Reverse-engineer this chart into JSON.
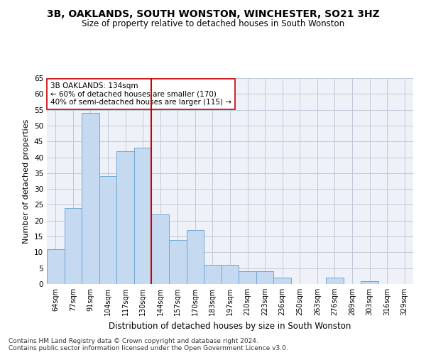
{
  "title": "3B, OAKLANDS, SOUTH WONSTON, WINCHESTER, SO21 3HZ",
  "subtitle": "Size of property relative to detached houses in South Wonston",
  "xlabel": "Distribution of detached houses by size in South Wonston",
  "ylabel": "Number of detached properties",
  "categories": [
    "64sqm",
    "77sqm",
    "91sqm",
    "104sqm",
    "117sqm",
    "130sqm",
    "144sqm",
    "157sqm",
    "170sqm",
    "183sqm",
    "197sqm",
    "210sqm",
    "223sqm",
    "236sqm",
    "250sqm",
    "263sqm",
    "276sqm",
    "289sqm",
    "303sqm",
    "316sqm",
    "329sqm"
  ],
  "values": [
    11,
    24,
    54,
    34,
    42,
    43,
    22,
    14,
    17,
    6,
    6,
    4,
    4,
    2,
    0,
    0,
    2,
    0,
    1,
    0,
    0
  ],
  "bar_color": "#c5d9f0",
  "bar_edge_color": "#6fa8d5",
  "grid_color": "#c0c8d8",
  "bg_color": "#eef2f8",
  "vline_x_index": 5,
  "vline_color": "#cc0000",
  "annotation_text": "3B OAKLANDS: 134sqm\n← 60% of detached houses are smaller (170)\n40% of semi-detached houses are larger (115) →",
  "annotation_box_color": "#ffffff",
  "annotation_box_edge": "#cc0000",
  "annotation_fontsize": 7.5,
  "ylim": [
    0,
    65
  ],
  "yticks": [
    0,
    5,
    10,
    15,
    20,
    25,
    30,
    35,
    40,
    45,
    50,
    55,
    60,
    65
  ],
  "footer": "Contains HM Land Registry data © Crown copyright and database right 2024.\nContains public sector information licensed under the Open Government Licence v3.0.",
  "title_fontsize": 10,
  "subtitle_fontsize": 8.5,
  "xlabel_fontsize": 8.5,
  "ylabel_fontsize": 8,
  "footer_fontsize": 6.5
}
